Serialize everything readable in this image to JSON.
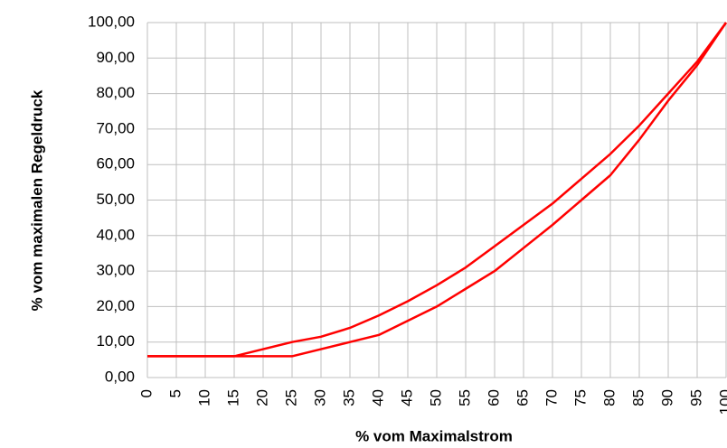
{
  "chart_data": {
    "type": "line",
    "x_label": "% vom Maximalstrom",
    "y_label": "% vom maximalen Regeldruck",
    "x": [
      0,
      5,
      10,
      15,
      20,
      25,
      30,
      35,
      40,
      45,
      50,
      55,
      60,
      65,
      70,
      75,
      80,
      85,
      90,
      95,
      100
    ],
    "series": [
      {
        "color": "#ff0000",
        "values": [
          6,
          6,
          6,
          6,
          8,
          10,
          11.5,
          14,
          17.5,
          21.5,
          26,
          31,
          37,
          43,
          49,
          56,
          63,
          71,
          80,
          89,
          100
        ]
      },
      {
        "color": "#ff0000",
        "values": [
          6,
          6,
          6,
          6,
          6,
          6,
          8,
          10,
          12,
          16,
          20,
          25,
          30,
          36.5,
          43,
          50,
          57,
          67,
          78,
          88,
          100
        ]
      }
    ],
    "xlim": [
      0,
      100
    ],
    "xticks": [
      0,
      5,
      10,
      15,
      20,
      25,
      30,
      35,
      40,
      45,
      50,
      55,
      60,
      65,
      70,
      75,
      80,
      85,
      90,
      95,
      100
    ],
    "ylim": [
      0,
      100
    ],
    "yticks": [
      {
        "value": 0,
        "label": "0,00"
      },
      {
        "value": 10,
        "label": "10,00"
      },
      {
        "value": 20,
        "label": "20,00"
      },
      {
        "value": 30,
        "label": "30,00"
      },
      {
        "value": 40,
        "label": "40,00"
      },
      {
        "value": 50,
        "label": "50,00"
      },
      {
        "value": 60,
        "label": "60,00"
      },
      {
        "value": 70,
        "label": "70,00"
      },
      {
        "value": 80,
        "label": "80,00"
      },
      {
        "value": 90,
        "label": "90,00"
      },
      {
        "value": 100,
        "label": "100,00"
      }
    ],
    "grid": true
  }
}
